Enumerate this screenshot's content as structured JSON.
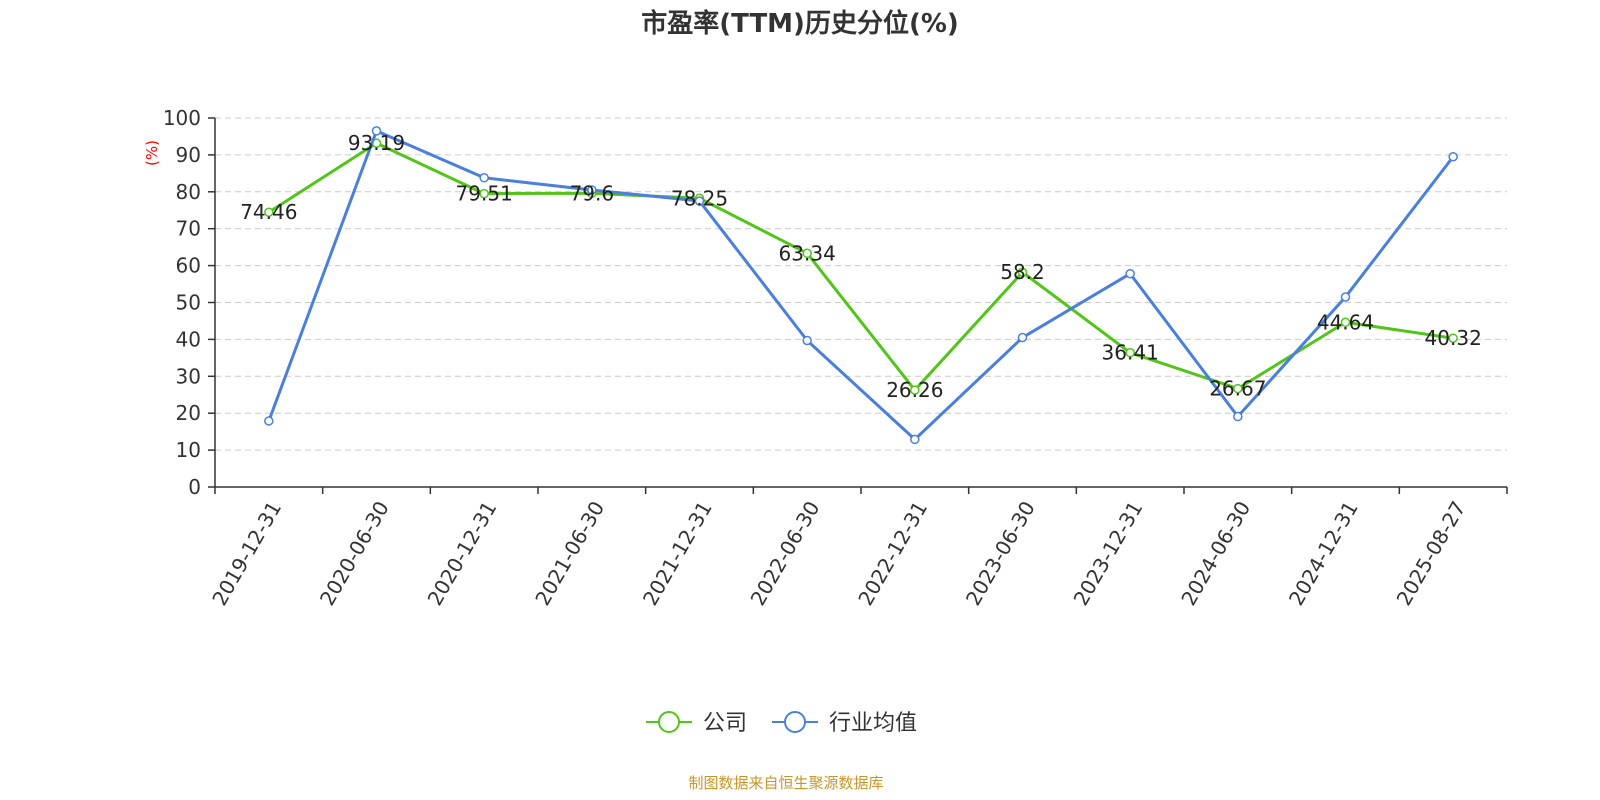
{
  "chart_data": {
    "type": "line",
    "title": "市盈率(TTM)历史分位(%)",
    "ylabel": "(%)",
    "ylim": [
      0,
      100
    ],
    "yticks": [
      0,
      10,
      20,
      30,
      40,
      50,
      60,
      70,
      80,
      90,
      100
    ],
    "grid": true,
    "legend_position": "bottom-center",
    "categories": [
      "2019-12-31",
      "2020-06-30",
      "2020-12-31",
      "2021-06-30",
      "2021-12-31",
      "2022-06-30",
      "2022-12-31",
      "2023-06-30",
      "2023-12-31",
      "2024-06-30",
      "2024-12-31",
      "2025-08-27"
    ],
    "series": [
      {
        "name": "公司",
        "color": "#52c41a",
        "values": [
          74.46,
          93.19,
          79.51,
          79.6,
          78.25,
          63.34,
          26.26,
          58.2,
          36.41,
          26.67,
          44.64,
          40.32
        ],
        "data_labels": [
          "74.46",
          "93.19",
          "79.51",
          "79.6",
          "78.25",
          "63.34",
          "26.26",
          "58.2",
          "36.41",
          "26.67",
          "44.64",
          "40.32"
        ]
      },
      {
        "name": "行业均值",
        "color": "#4a7fdc",
        "values": [
          17.9,
          96.5,
          83.8,
          80.5,
          77.5,
          39.7,
          12.9,
          40.5,
          57.8,
          19.1,
          51.5,
          89.5
        ]
      }
    ],
    "source": "制图数据来自恒生聚源数据库"
  },
  "colors": {
    "axis": "#333333",
    "grid": "#cccccc",
    "ylabel": "#ff0000",
    "source": "#c8962a"
  }
}
